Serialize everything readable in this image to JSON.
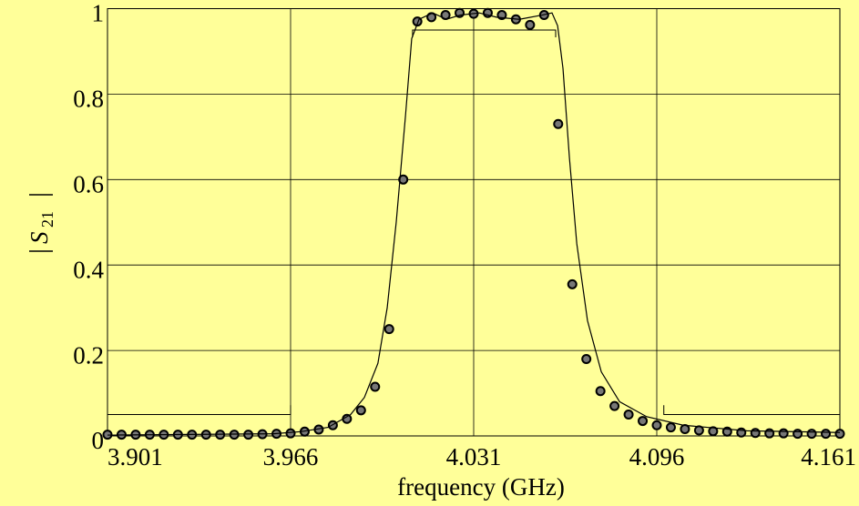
{
  "chart_data": {
    "type": "scatter_line",
    "xlabel": "frequency (GHz)",
    "ylabel": {
      "symbol": "S",
      "subscript": "21"
    },
    "xlim": [
      3.901,
      4.161
    ],
    "xticks": [
      3.901,
      3.966,
      4.031,
      4.096,
      4.161
    ],
    "ylim": [
      0,
      1
    ],
    "yticks": [
      0,
      0.2,
      0.4,
      0.6,
      0.8,
      1
    ],
    "grid": true,
    "background": "#ffff99",
    "series": [
      {
        "kind": "points",
        "color": "#000000",
        "x": [
          3.901,
          3.906,
          3.911,
          3.916,
          3.921,
          3.926,
          3.931,
          3.936,
          3.941,
          3.946,
          3.951,
          3.956,
          3.961,
          3.966,
          3.971,
          3.976,
          3.981,
          3.986,
          3.991,
          3.996,
          4.001,
          4.006,
          4.011,
          4.016,
          4.021,
          4.026,
          4.031,
          4.036,
          4.041,
          4.046,
          4.051,
          4.056,
          4.061,
          4.066,
          4.071,
          4.076,
          4.081,
          4.086,
          4.091,
          4.096,
          4.101,
          4.106,
          4.111,
          4.116,
          4.121,
          4.126,
          4.131,
          4.136,
          4.141,
          4.146,
          4.151,
          4.156,
          4.161
        ],
        "values": [
          0.003,
          0.003,
          0.003,
          0.003,
          0.003,
          0.003,
          0.003,
          0.003,
          0.003,
          0.003,
          0.003,
          0.004,
          0.005,
          0.006,
          0.01,
          0.015,
          0.025,
          0.04,
          0.06,
          0.115,
          0.25,
          0.6,
          0.97,
          0.98,
          0.985,
          0.99,
          0.988,
          0.99,
          0.985,
          0.975,
          0.962,
          0.985,
          0.73,
          0.355,
          0.18,
          0.105,
          0.07,
          0.05,
          0.035,
          0.025,
          0.02,
          0.016,
          0.013,
          0.011,
          0.01,
          0.008,
          0.007,
          0.006,
          0.006,
          0.005,
          0.005,
          0.005,
          0.005
        ]
      },
      {
        "kind": "line",
        "color": "#000000",
        "x": [
          3.901,
          3.9599,
          3.9696,
          3.9793,
          3.9873,
          3.9922,
          3.997,
          4.0003,
          4.0035,
          4.0068,
          4.009,
          4.0116,
          4.0165,
          4.0213,
          4.0262,
          4.033,
          4.0391,
          4.0472,
          4.0553,
          4.0588,
          4.0608,
          4.0627,
          4.065,
          4.0676,
          4.0714,
          4.0763,
          4.0828,
          4.0924,
          4.1054,
          4.128,
          4.161
        ],
        "values": [
          0.002,
          0.005,
          0.01,
          0.02,
          0.05,
          0.09,
          0.17,
          0.3,
          0.5,
          0.75,
          0.93,
          0.975,
          0.99,
          0.975,
          0.985,
          0.99,
          0.98,
          0.975,
          0.985,
          0.99,
          0.96,
          0.86,
          0.65,
          0.45,
          0.27,
          0.15,
          0.08,
          0.045,
          0.025,
          0.012,
          0.008
        ]
      },
      {
        "kind": "spec",
        "color": "#000000",
        "x": [
          3.901,
          3.966,
          3.966
        ],
        "values": [
          0.05,
          0.05,
          0.072
        ]
      },
      {
        "kind": "spec",
        "color": "#000000",
        "x": [
          4.0985,
          4.0985,
          4.161
        ],
        "values": [
          0.072,
          0.05,
          0.05
        ]
      },
      {
        "kind": "spec",
        "color": "#000000",
        "x": [
          4.0093,
          4.0093,
          4.0601,
          4.0601
        ],
        "values": [
          0.933,
          0.95,
          0.95,
          0.933
        ]
      }
    ]
  }
}
